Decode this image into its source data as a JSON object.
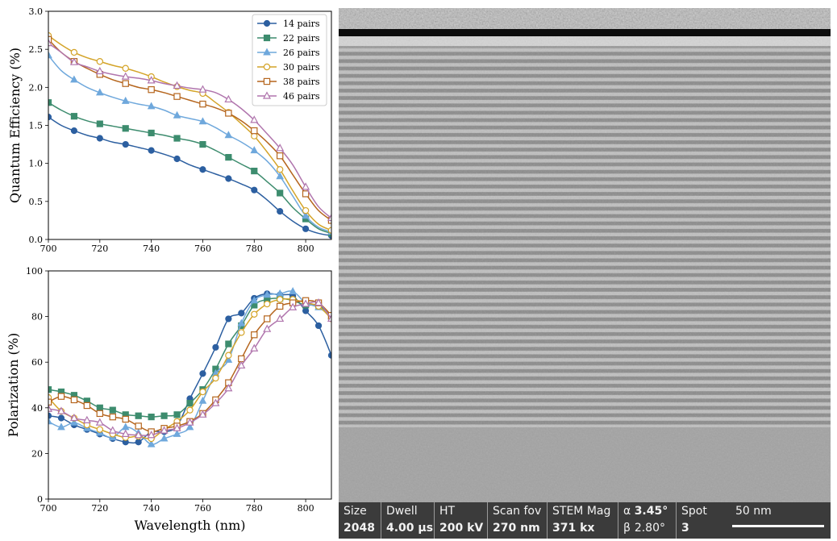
{
  "chart_data": [
    {
      "type": "line",
      "xlabel": "",
      "ylabel": "Quantum Efficiency (%)",
      "xlim": [
        700,
        810
      ],
      "ylim": [
        0,
        3.0
      ],
      "xticks": [
        "700",
        "720",
        "740",
        "760",
        "780",
        "800"
      ],
      "yticks": [
        "0.0",
        "0.5",
        "1.0",
        "1.5",
        "2.0",
        "2.5",
        "3.0"
      ],
      "legend_position": "top-right",
      "grid": false,
      "x": [
        700,
        705,
        710,
        715,
        720,
        725,
        730,
        735,
        740,
        745,
        750,
        755,
        760,
        765,
        770,
        775,
        780,
        785,
        790,
        795,
        800,
        805,
        810
      ],
      "markers_every": 2,
      "series": [
        {
          "name": "14 pairs",
          "color": "#2c5fa0",
          "marker": "circle",
          "filled": true,
          "values": [
            1.61,
            1.5,
            1.43,
            1.37,
            1.33,
            1.28,
            1.25,
            1.21,
            1.17,
            1.12,
            1.06,
            0.98,
            0.92,
            0.86,
            0.8,
            0.73,
            0.65,
            0.52,
            0.37,
            0.24,
            0.14,
            0.08,
            0.05
          ]
        },
        {
          "name": "22 pairs",
          "color": "#3d8c6e",
          "marker": "square",
          "filled": true,
          "values": [
            1.8,
            1.7,
            1.62,
            1.56,
            1.52,
            1.49,
            1.46,
            1.43,
            1.4,
            1.37,
            1.33,
            1.3,
            1.25,
            1.17,
            1.08,
            0.99,
            0.9,
            0.76,
            0.61,
            0.42,
            0.27,
            0.14,
            0.08
          ]
        },
        {
          "name": "26 pairs",
          "color": "#6fa8dc",
          "marker": "triangle",
          "filled": true,
          "values": [
            2.42,
            2.22,
            2.1,
            2.0,
            1.93,
            1.87,
            1.82,
            1.78,
            1.75,
            1.7,
            1.63,
            1.59,
            1.55,
            1.47,
            1.37,
            1.28,
            1.17,
            1.03,
            0.83,
            0.57,
            0.31,
            0.16,
            0.1
          ]
        },
        {
          "name": "30 pairs",
          "color": "#d4a429",
          "marker": "circle",
          "filled": false,
          "values": [
            2.68,
            2.56,
            2.46,
            2.39,
            2.34,
            2.29,
            2.25,
            2.2,
            2.14,
            2.07,
            2.01,
            1.96,
            1.92,
            1.8,
            1.67,
            1.52,
            1.36,
            1.15,
            0.92,
            0.64,
            0.38,
            0.2,
            0.12
          ]
        },
        {
          "name": "38 pairs",
          "color": "#b5651d",
          "marker": "square",
          "filled": false,
          "values": [
            2.63,
            2.46,
            2.34,
            2.25,
            2.17,
            2.1,
            2.05,
            2.0,
            1.97,
            1.93,
            1.88,
            1.83,
            1.78,
            1.73,
            1.66,
            1.56,
            1.43,
            1.28,
            1.1,
            0.85,
            0.6,
            0.38,
            0.25
          ]
        },
        {
          "name": "46 pairs",
          "color": "#b075ad",
          "marker": "triangle",
          "filled": false,
          "values": [
            2.58,
            2.46,
            2.33,
            2.27,
            2.21,
            2.17,
            2.14,
            2.12,
            2.09,
            2.05,
            2.02,
            1.99,
            1.97,
            1.93,
            1.84,
            1.72,
            1.57,
            1.39,
            1.2,
            0.98,
            0.69,
            0.43,
            0.28
          ]
        }
      ]
    },
    {
      "type": "line",
      "xlabel": "Wavelength (nm)",
      "ylabel": "Polarization (%)",
      "xlim": [
        700,
        810
      ],
      "ylim": [
        0,
        100
      ],
      "xticks": [
        "700",
        "720",
        "740",
        "760",
        "780",
        "800"
      ],
      "yticks": [
        "0",
        "20",
        "40",
        "60",
        "80",
        "100"
      ],
      "grid": false,
      "x": [
        700,
        705,
        710,
        715,
        720,
        725,
        730,
        735,
        740,
        745,
        750,
        755,
        760,
        765,
        770,
        775,
        780,
        785,
        790,
        795,
        800,
        805,
        810
      ],
      "markers_every": 1,
      "series": [
        {
          "name": "14 pairs",
          "color": "#2c5fa0",
          "marker": "circle",
          "filled": true,
          "values": [
            36.5,
            35.5,
            32.5,
            30.5,
            28.5,
            26.5,
            25.0,
            25.0,
            29.5,
            29.5,
            32.0,
            44.0,
            55.0,
            66.5,
            79.0,
            81.5,
            88.0,
            90.0,
            89.5,
            89.0,
            82.5,
            76.0,
            63.0
          ]
        },
        {
          "name": "22 pairs",
          "color": "#3d8c6e",
          "marker": "square",
          "filled": true,
          "values": [
            48.0,
            47.0,
            45.5,
            43.0,
            40.0,
            39.0,
            37.0,
            36.5,
            36.0,
            36.5,
            37.0,
            42.0,
            48.0,
            57.0,
            68.0,
            76.0,
            85.0,
            87.5,
            88.0,
            87.0,
            85.0,
            85.0,
            80.0
          ]
        },
        {
          "name": "26 pairs",
          "color": "#6fa8dc",
          "marker": "triangle",
          "filled": true,
          "values": [
            34.0,
            31.5,
            33.5,
            31.0,
            29.0,
            27.0,
            31.5,
            29.0,
            24.0,
            26.5,
            28.5,
            31.5,
            43.0,
            55.0,
            61.0,
            77.0,
            87.0,
            89.5,
            90.0,
            91.0,
            86.0,
            84.0,
            80.0
          ]
        },
        {
          "name": "30 pairs",
          "color": "#d4a429",
          "marker": "circle",
          "filled": false,
          "values": [
            44.5,
            38.5,
            35.5,
            32.5,
            30.5,
            28.5,
            27.0,
            27.5,
            26.5,
            30.5,
            34.0,
            39.0,
            47.0,
            53.0,
            63.0,
            73.0,
            81.0,
            85.5,
            87.5,
            87.5,
            86.0,
            84.5,
            79.0
          ]
        },
        {
          "name": "38 pairs",
          "color": "#b5651d",
          "marker": "square",
          "filled": false,
          "values": [
            42.5,
            45.0,
            43.5,
            41.0,
            37.5,
            36.0,
            35.0,
            32.0,
            29.5,
            31.0,
            32.0,
            34.0,
            37.5,
            43.5,
            51.0,
            61.5,
            72.0,
            79.0,
            84.5,
            86.0,
            87.0,
            86.0,
            80.5
          ]
        },
        {
          "name": "46 pairs",
          "color": "#b075ad",
          "marker": "triangle",
          "filled": false,
          "values": [
            39.5,
            38.5,
            35.5,
            34.5,
            33.5,
            30.0,
            28.5,
            28.0,
            28.0,
            30.0,
            31.0,
            33.5,
            37.0,
            42.0,
            48.5,
            58.5,
            66.0,
            74.5,
            79.0,
            84.0,
            85.5,
            86.0,
            79.0
          ]
        }
      ]
    }
  ],
  "stem_image": {
    "info_bar": {
      "cells": [
        {
          "label": "Size",
          "value": "2048"
        },
        {
          "label": "Dwell",
          "value": "4.00 µs"
        },
        {
          "label": "HT",
          "value": "200 kV"
        },
        {
          "label": "Scan fov",
          "value": "270 nm"
        },
        {
          "label": "STEM Mag",
          "value": "371 kx"
        },
        {
          "label_prefix": "α",
          "label": "3.45°",
          "value_prefix": "β",
          "value": "2.80°"
        },
        {
          "label": "Spot",
          "value": "3"
        }
      ],
      "scale_bar_label": "50 nm"
    }
  }
}
